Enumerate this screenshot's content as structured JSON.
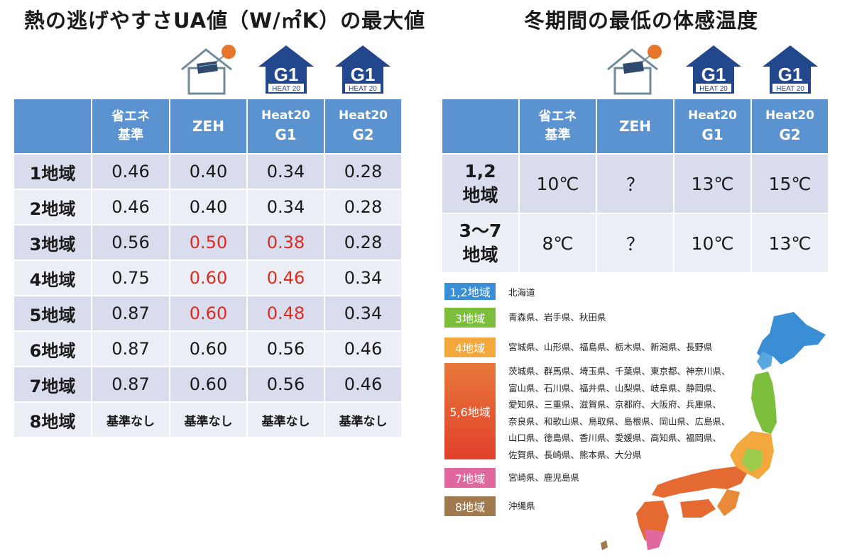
{
  "left": {
    "title": "熱の逃げやすさUA値（W/㎡K）の最大値",
    "headers": [
      "",
      "省エネ\n基準",
      "ZEH",
      "Heat20\nG1",
      "Heat20\nG2"
    ],
    "rows": [
      {
        "label": "1地域",
        "values": [
          "0.46",
          "0.40",
          "0.34",
          "0.28"
        ]
      },
      {
        "label": "2地域",
        "values": [
          "0.46",
          "0.40",
          "0.34",
          "0.28"
        ]
      },
      {
        "label": "3地域",
        "values": [
          "0.56",
          "0.50",
          "0.38",
          "0.28"
        ]
      },
      {
        "label": "4地域",
        "values": [
          "0.75",
          "0.60",
          "0.46",
          "0.34"
        ]
      },
      {
        "label": "5地域",
        "values": [
          "0.87",
          "0.60",
          "0.48",
          "0.34"
        ]
      },
      {
        "label": "6地域",
        "values": [
          "0.87",
          "0.60",
          "0.56",
          "0.46"
        ]
      },
      {
        "label": "7地域",
        "values": [
          "0.87",
          "0.60",
          "0.56",
          "0.46"
        ]
      },
      {
        "label": "8地域",
        "values": [
          "基準なし",
          "基準なし",
          "基準なし",
          "基準なし"
        ]
      }
    ]
  },
  "right": {
    "title": "冬期間の最低の体感温度",
    "headers": [
      "",
      "省エネ\n基準",
      "ZEH",
      "Heat20\nG1",
      "Heat20\nG2"
    ],
    "rows": [
      {
        "label": "1,2\n地域",
        "values": [
          "10℃",
          "？",
          "13℃",
          "15℃"
        ]
      },
      {
        "label": "3〜7\n地域",
        "values": [
          "8℃",
          "？",
          "10℃",
          "13℃"
        ]
      }
    ]
  },
  "badges": {
    "g1_top": "G1",
    "g1_bottom": "HEAT 20"
  },
  "legend": [
    {
      "label": "1,2地域",
      "color": "#3a8ed6",
      "prefectures": [
        "北海道"
      ]
    },
    {
      "label": "3地域",
      "color": "#7cbf3c",
      "prefectures": [
        "青森県、岩手県、秋田県"
      ]
    },
    {
      "label": "4地域",
      "color": "#f2a83c",
      "prefectures": [
        "宮城県、山形県、福島県、栃木県、新潟県、長野県"
      ]
    },
    {
      "label": "5,6地域",
      "color": "#e56a32",
      "prefectures": [
        "茨城県、群馬県、埼玉県、千葉県、東京都、神奈川県、",
        "富山県、石川県、福井県、山梨県、岐阜県、静岡県、",
        "愛知県、三重県、滋賀県、京都府、大阪府、兵庫県、",
        "奈良県、和歌山県、鳥取県、島根県、岡山県、広島県、",
        "山口県、徳島県、香川県、愛媛県、高知県、福岡県、",
        "佐賀県、長崎県、熊本県、大分県"
      ]
    },
    {
      "label": "7地域",
      "color": "#e0689e",
      "prefectures": [
        "宮崎県、鹿児島県"
      ]
    },
    {
      "label": "8地域",
      "color": "#a07a4e",
      "prefectures": [
        "沖縄県"
      ]
    }
  ],
  "colors": {
    "header_blue": "#5b93d0",
    "row_dark": "#d8dcec",
    "row_light": "#eceef6",
    "highlight_red": "#e02a1e",
    "badge_navy": "#23478c",
    "badge_green": "#5aa13a"
  }
}
